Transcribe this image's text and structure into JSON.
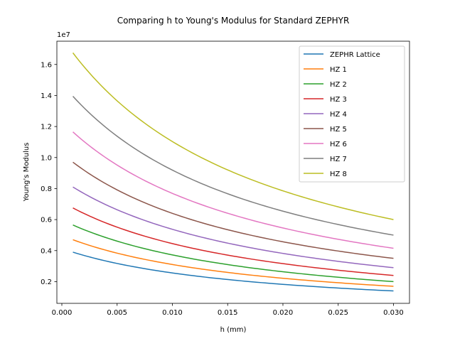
{
  "chart_data": {
    "type": "line",
    "title": "Comparing h to Young's Modulus for Standard ZEPHYR",
    "xlabel": "h (mm)",
    "ylabel": "Young's Modulus",
    "y_offset_label": "1e7",
    "xlim": [
      -0.00045,
      0.03145
    ],
    "ylim": [
      0.06,
      1.75
    ],
    "x_ticks": [
      0.0,
      0.005,
      0.01,
      0.015,
      0.02,
      0.025,
      0.03
    ],
    "x_tick_labels": [
      "0.000",
      "0.005",
      "0.010",
      "0.015",
      "0.020",
      "0.025",
      "0.030"
    ],
    "y_ticks": [
      0.2,
      0.4,
      0.6,
      0.8,
      1.0,
      1.2,
      1.4,
      1.6
    ],
    "y_tick_labels": [
      "0.2",
      "0.4",
      "0.6",
      "0.8",
      "1.0",
      "1.2",
      "1.4",
      "1.6"
    ],
    "grid": false,
    "legend_position": "top-right",
    "x_range": [
      0.001,
      0.03
    ],
    "series": [
      {
        "name": "ZEPHR Lattice",
        "color": "#1f77b4",
        "start": 0.39,
        "end": 0.14,
        "mid": 0.21
      },
      {
        "name": "HZ 1",
        "color": "#ff7f0e",
        "start": 0.47,
        "end": 0.17,
        "mid": 0.255
      },
      {
        "name": "HZ 2",
        "color": "#2ca02c",
        "start": 0.565,
        "end": 0.2,
        "mid": 0.305
      },
      {
        "name": "HZ 3",
        "color": "#d62728",
        "start": 0.675,
        "end": 0.24,
        "mid": 0.365
      },
      {
        "name": "HZ 4",
        "color": "#9467bd",
        "start": 0.81,
        "end": 0.29,
        "mid": 0.44
      },
      {
        "name": "HZ 5",
        "color": "#8c564b",
        "start": 0.97,
        "end": 0.35,
        "mid": 0.525
      },
      {
        "name": "HZ 6",
        "color": "#e377c2",
        "start": 1.165,
        "end": 0.415,
        "mid": 0.63
      },
      {
        "name": "HZ 7",
        "color": "#7f7f7f",
        "start": 1.395,
        "end": 0.5,
        "mid": 0.755
      },
      {
        "name": "HZ 8",
        "color": "#bcbd22",
        "start": 1.675,
        "end": 0.6,
        "mid": 0.905
      }
    ]
  }
}
